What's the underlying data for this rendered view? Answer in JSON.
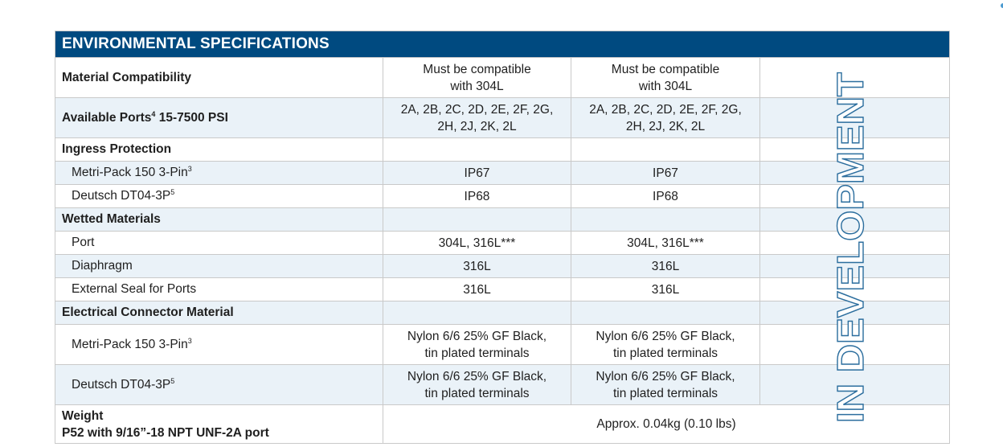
{
  "header": {
    "title": "ENVIRONMENTAL SPECIFICATIONS"
  },
  "watermark": {
    "text": "IN DEVELOPMENT",
    "color": "#2c6e9e"
  },
  "colors": {
    "header_bg": "#004a80",
    "row_shade": "#eaf2f8"
  },
  "rows": [
    {
      "label": "Material Compatibility",
      "col1": [
        "Must be compatible",
        "with 304L"
      ],
      "col2": [
        "Must be compatible",
        "with 304L"
      ]
    },
    {
      "label": "Available Ports",
      "label_sup": "4",
      "label_suffix": " 15-7500 PSI",
      "col1": [
        "2A, 2B, 2C, 2D, 2E, 2F, 2G,",
        "2H, 2J, 2K, 2L"
      ],
      "col2": [
        "2A, 2B, 2C, 2D, 2E, 2F, 2G,",
        "2H, 2J, 2K, 2L"
      ]
    },
    {
      "label": "Ingress Protection"
    },
    {
      "label": "Metri-Pack 150 3-Pin",
      "label_sup": "3",
      "col1": "IP67",
      "col2": "IP67"
    },
    {
      "label": "Deutsch DT04-3P",
      "label_sup": "5",
      "col1": "IP68",
      "col2": "IP68"
    },
    {
      "label": "Wetted Materials"
    },
    {
      "label": "Port",
      "col1": "304L, 316L***",
      "col2": "304L, 316L***"
    },
    {
      "label": "Diaphragm",
      "col1": "316L",
      "col2": "316L"
    },
    {
      "label": "External Seal for Ports",
      "col1": "316L",
      "col2": "316L"
    },
    {
      "label": "Electrical Connector Material"
    },
    {
      "label": "Metri-Pack 150 3-Pin",
      "label_sup": "3",
      "col1": [
        "Nylon 6/6 25% GF Black,",
        "tin plated terminals"
      ],
      "col2": [
        "Nylon 6/6 25% GF Black,",
        "tin plated terminals"
      ]
    },
    {
      "label": "Deutsch DT04-3P",
      "label_sup": "5",
      "col1": [
        "Nylon 6/6 25% GF Black,",
        "tin plated terminals"
      ],
      "col2": [
        "Nylon 6/6 25% GF Black,",
        "tin plated terminals"
      ]
    },
    {
      "label": [
        "Weight",
        "P52 with 9/16”-18 NPT UNF-2A port"
      ],
      "value": "Approx. 0.04kg (0.10 lbs)"
    }
  ]
}
